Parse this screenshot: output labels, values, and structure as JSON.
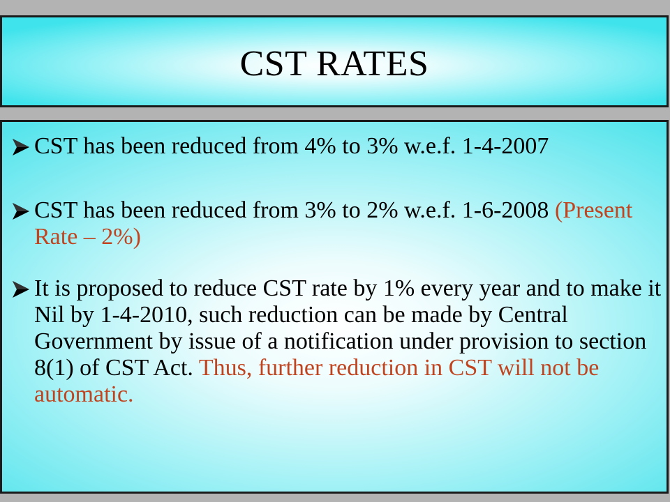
{
  "slide": {
    "title": "CST RATES",
    "bullet_icon": "arrow-bullet-icon",
    "colors": {
      "accent_red": "#c0441f",
      "title_bg": "#3fe3ec",
      "border": "#1a1a1a"
    },
    "bullets": [
      {
        "text": "CST has been reduced from 4% to 3% w.e.f. 1-4-2007"
      },
      {
        "text": "CST has been reduced from 3% to 2% w.e.f. 1-6-2008 ",
        "highlight": "(Present Rate – 2%)"
      },
      {
        "text": "It is proposed to reduce CST rate by 1% every year and to make it Nil by 1-4-2010, such reduction can be made by Central Government by issue of a notification under provision to section 8(1) of CST Act.  ",
        "highlight": "Thus, further reduction in CST will not be automatic."
      }
    ]
  }
}
